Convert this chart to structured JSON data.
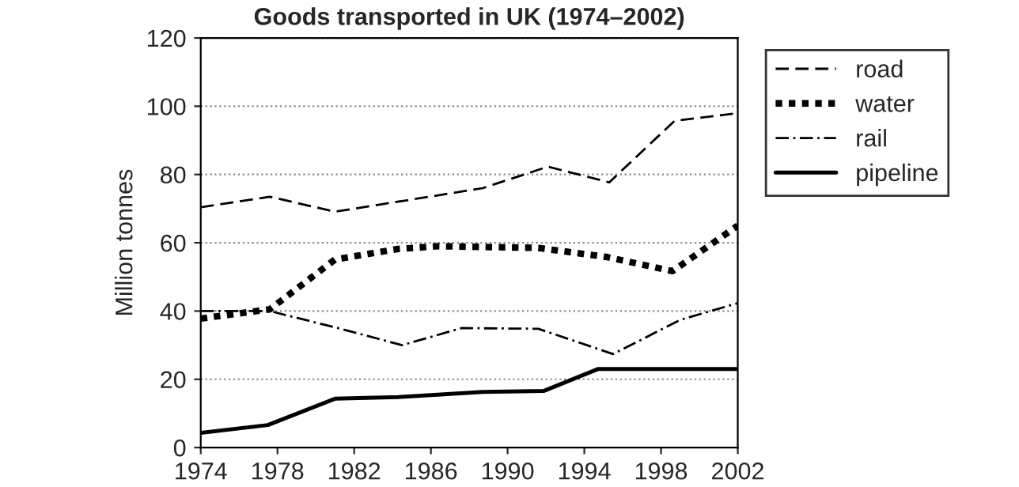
{
  "chart_data": {
    "type": "line",
    "title": "Goods transported in UK (1974–2002)",
    "ylabel": "Million tonnes",
    "xlim": [
      1974,
      2002
    ],
    "xticks": [
      1974,
      1978,
      1982,
      1986,
      1990,
      1994,
      1998,
      2002
    ],
    "ylim": [
      0,
      120
    ],
    "yticks": [
      0,
      20,
      40,
      60,
      80,
      100,
      120
    ],
    "grid": "y",
    "legend": "top right",
    "marker": "none",
    "series": [
      {
        "name": "road",
        "color": "#000000",
        "line_style": "dashed",
        "x": [
          1974,
          1977.6,
          1981,
          1988.7,
          1992.1,
          1995.3,
          1998.7,
          2002
        ],
        "values": [
          70.4,
          73.5,
          69.1,
          76,
          82.3,
          77.7,
          95.7,
          98
        ]
      },
      {
        "name": "water",
        "color": "#000000",
        "line_style": "dotted",
        "x": [
          1974,
          1977.6,
          1981,
          1984.3,
          1986.4,
          1991.6,
          1995.2,
          1998.6,
          2002
        ],
        "values": [
          37.8,
          40.5,
          55.1,
          58.2,
          59,
          58.5,
          55.8,
          51.7,
          65
        ]
      },
      {
        "name": "rail",
        "color": "#000000",
        "line_style": "dashdot",
        "x": [
          1974,
          1977.6,
          1981.3,
          1984.5,
          1987.6,
          1991.6,
          1995.5,
          1999,
          2002
        ],
        "values": [
          40,
          40,
          34.8,
          30,
          35,
          34.8,
          27.4,
          37.4,
          42.3
        ]
      },
      {
        "name": "pipeline",
        "color": "#000000",
        "line_style": "solid",
        "x": [
          1974,
          1977.5,
          1981,
          1984.3,
          1988.7,
          1991.9,
          1994.7,
          2002
        ],
        "values": [
          4.3,
          6.6,
          14.3,
          14.8,
          16.3,
          16.6,
          23,
          23
        ]
      }
    ]
  }
}
